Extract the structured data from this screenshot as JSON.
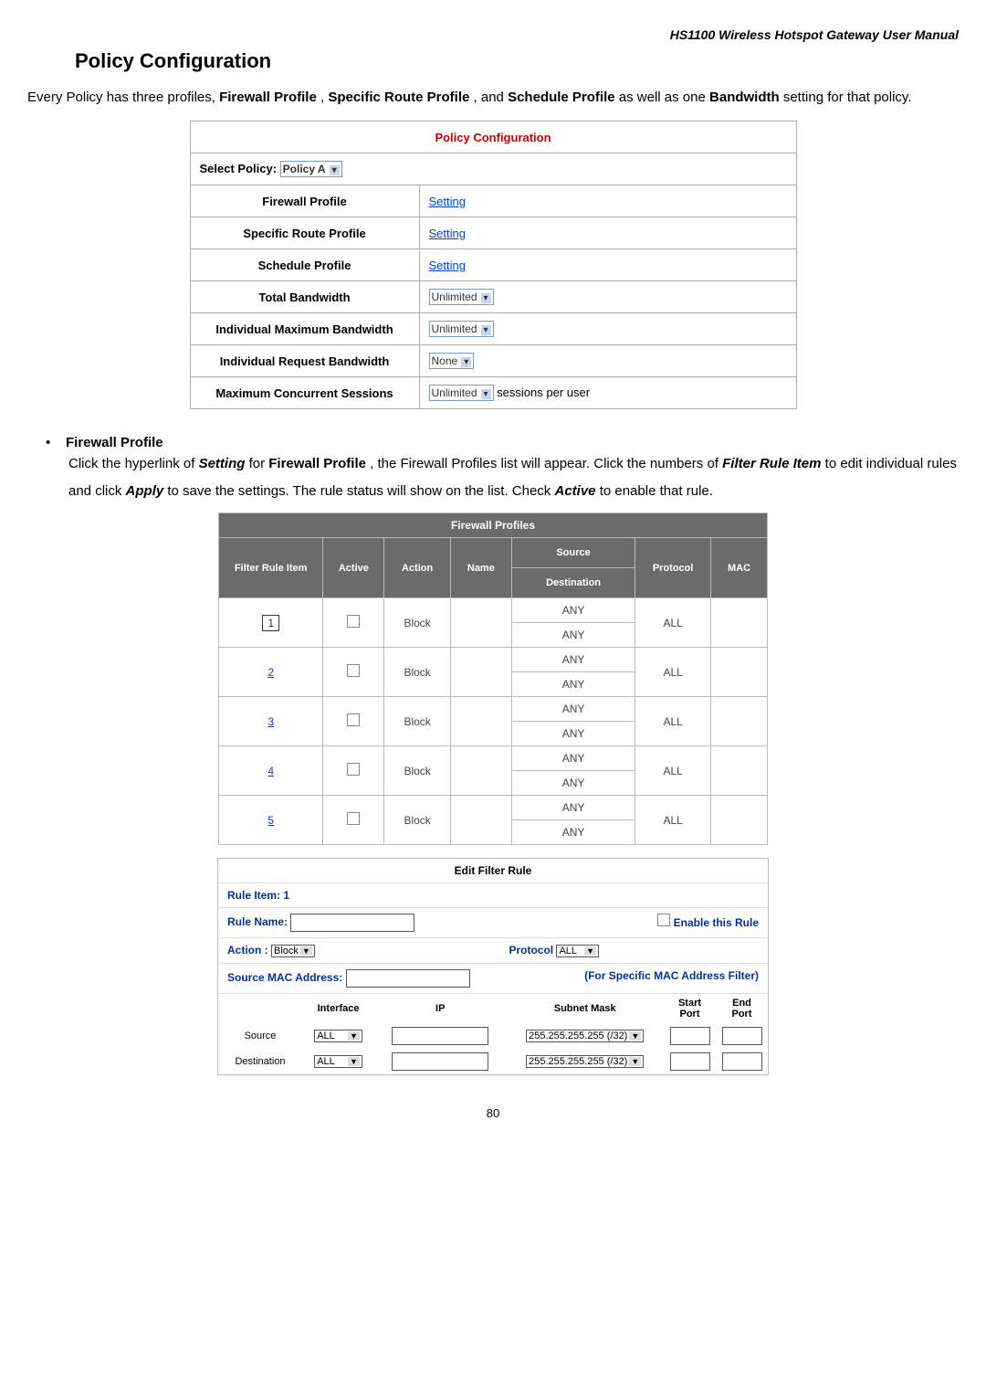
{
  "header": "HS1100  Wireless  Hotspot  Gateway  User  Manual",
  "title": "Policy Configuration",
  "intro": {
    "pre": "Every Policy has three profiles, ",
    "p1": "Firewall Profile",
    "mid1": ", ",
    "p2": "Specific Route Profile",
    "mid2": ", and ",
    "p3": "Schedule Profile",
    "mid3": " as well as one ",
    "p4": "Bandwidth",
    "post": " setting for that policy."
  },
  "policy": {
    "heading": "Policy Configuration",
    "select_label": "Select Policy:",
    "select_value": "Policy A",
    "rows": [
      {
        "label": "Firewall Profile",
        "type": "link",
        "value": "Setting"
      },
      {
        "label": "Specific Route Profile",
        "type": "link",
        "value": "Setting"
      },
      {
        "label": "Schedule Profile",
        "type": "link",
        "value": "Setting"
      },
      {
        "label": "Total Bandwidth",
        "type": "select",
        "value": "Unlimited"
      },
      {
        "label": "Individual Maximum Bandwidth",
        "type": "select",
        "value": "Unlimited"
      },
      {
        "label": "Individual Request Bandwidth",
        "type": "select",
        "value": "None"
      },
      {
        "label": "Maximum Concurrent Sessions",
        "type": "select_suffix",
        "value": "Unlimited",
        "suffix": "sessions per user"
      }
    ]
  },
  "bullet": {
    "label": "Firewall Profile",
    "para_pre": "Click the hyperlink of ",
    "setting": "Setting",
    "para_mid1": " for ",
    "fw": "Firewall Profile",
    "para_mid2": ", the Firewall Profiles list will appear. Click the numbers of ",
    "filter": "Filter Rule Item",
    "para_mid3": " to edit individual rules and click ",
    "apply": "Apply",
    "para_mid4": " to save the settings. The rule status will show on the list. Check ",
    "active": "Active",
    "para_post": " to enable that rule."
  },
  "fw": {
    "title": "Firewall Profiles",
    "headers": [
      "Filter Rule Item",
      "Active",
      "Action",
      "Name",
      "Source",
      "Destination",
      "Protocol",
      "MAC"
    ],
    "rows": [
      {
        "num": "1",
        "boxed": true,
        "action": "Block",
        "src": "ANY",
        "dst": "ANY",
        "proto": "ALL"
      },
      {
        "num": "2",
        "boxed": false,
        "action": "Block",
        "src": "ANY",
        "dst": "ANY",
        "proto": "ALL"
      },
      {
        "num": "3",
        "boxed": false,
        "action": "Block",
        "src": "ANY",
        "dst": "ANY",
        "proto": "ALL"
      },
      {
        "num": "4",
        "boxed": false,
        "action": "Block",
        "src": "ANY",
        "dst": "ANY",
        "proto": "ALL"
      },
      {
        "num": "5",
        "boxed": false,
        "action": "Block",
        "src": "ANY",
        "dst": "ANY",
        "proto": "ALL"
      }
    ]
  },
  "edit": {
    "title": "Edit Filter Rule",
    "rule_item": "Rule Item: 1",
    "rule_name_label": "Rule Name:",
    "enable_label": "Enable this Rule",
    "action_label": "Action :",
    "action_value": "Block",
    "protocol_label": "Protocol",
    "protocol_value": "ALL",
    "mac_label": "Source MAC Address:",
    "mac_note": "(For Specific MAC Address Filter)",
    "cols": {
      "iface": "Interface",
      "ip": "IP",
      "mask": "Subnet Mask",
      "start": "Start Port",
      "end": "End Port"
    },
    "source_label": "Source",
    "dest_label": "Destination",
    "iface_val": "ALL",
    "mask_val": "255.255.255.255 (/32)"
  },
  "page": "80"
}
